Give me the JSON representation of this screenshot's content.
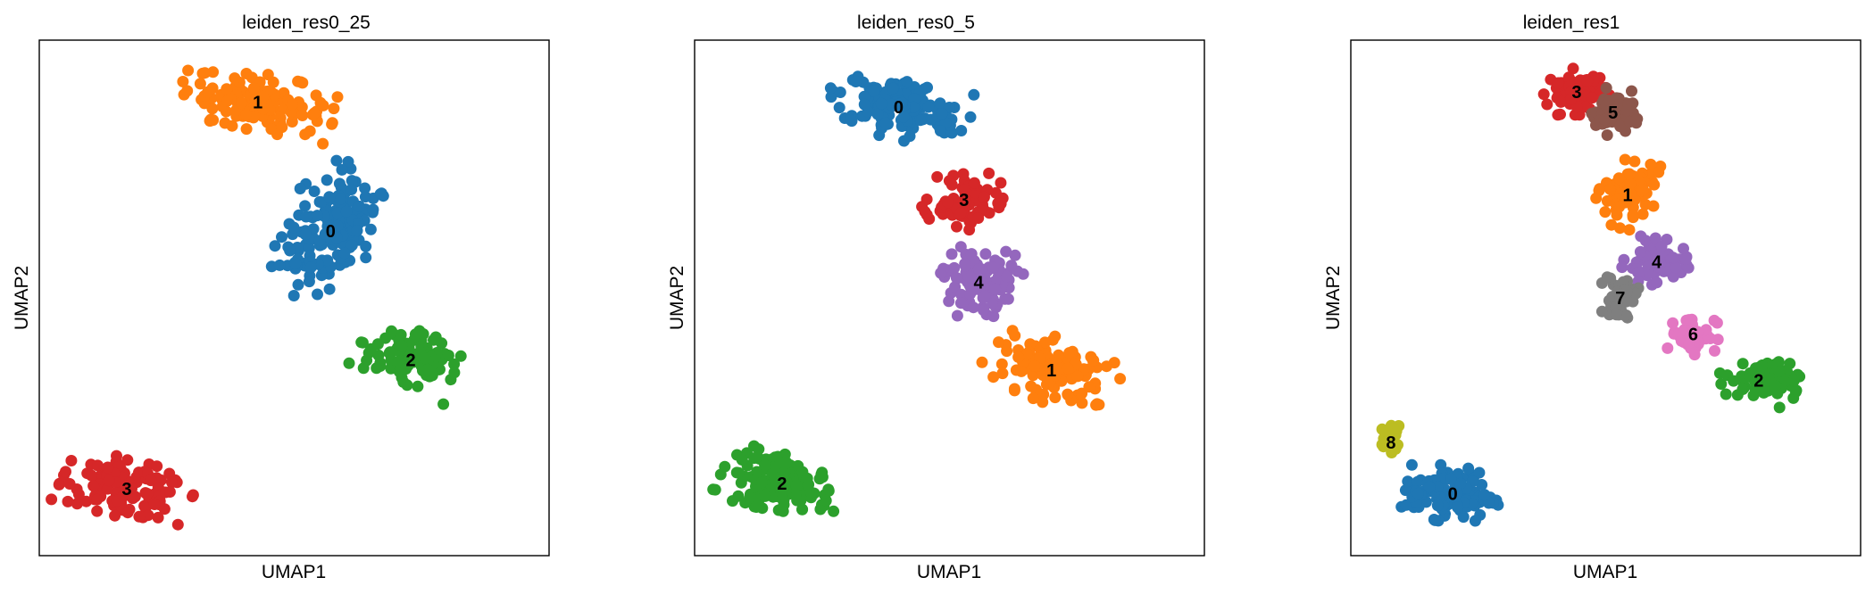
{
  "chart_data": [
    {
      "type": "scatter",
      "title": "leiden_res0_25",
      "xlabel": "UMAP1",
      "ylabel": "UMAP2",
      "ticks": "none",
      "legend": "on data",
      "clusters": [
        {
          "name": "0",
          "color": "#1f77b4",
          "x": 4.0,
          "y": 6.3,
          "sx": 0.65,
          "sy": 1.35,
          "rot": -18,
          "n": 160
        },
        {
          "name": "1",
          "color": "#ff7f0e",
          "x": 3.0,
          "y": 8.8,
          "sx": 1.1,
          "sy": 0.55,
          "rot": -18,
          "n": 140
        },
        {
          "name": "2",
          "color": "#2ca02c",
          "x": 5.1,
          "y": 3.8,
          "sx": 0.8,
          "sy": 0.55,
          "rot": -28,
          "n": 110
        },
        {
          "name": "3",
          "color": "#d62728",
          "x": 1.2,
          "y": 1.3,
          "sx": 0.9,
          "sy": 0.55,
          "rot": -20,
          "n": 130
        }
      ]
    },
    {
      "type": "scatter",
      "title": "leiden_res0_5",
      "xlabel": "UMAP1",
      "ylabel": "UMAP2",
      "ticks": "none",
      "legend": "on data",
      "clusters": [
        {
          "name": "0",
          "color": "#1f77b4",
          "x": 2.8,
          "y": 8.7,
          "sx": 1.0,
          "sy": 0.6,
          "rot": -18,
          "n": 150
        },
        {
          "name": "3",
          "color": "#d62728",
          "x": 3.7,
          "y": 6.9,
          "sx": 0.5,
          "sy": 0.6,
          "rot": -20,
          "n": 80
        },
        {
          "name": "4",
          "color": "#9467bd",
          "x": 3.9,
          "y": 5.3,
          "sx": 0.55,
          "sy": 0.7,
          "rot": -15,
          "n": 100
        },
        {
          "name": "1",
          "color": "#ff7f0e",
          "x": 4.9,
          "y": 3.6,
          "sx": 0.9,
          "sy": 0.6,
          "rot": -30,
          "n": 120
        },
        {
          "name": "2",
          "color": "#2ca02c",
          "x": 1.2,
          "y": 1.4,
          "sx": 0.85,
          "sy": 0.55,
          "rot": -20,
          "n": 130
        }
      ]
    },
    {
      "type": "scatter",
      "title": "leiden_res1",
      "xlabel": "UMAP1",
      "ylabel": "UMAP2",
      "ticks": "none",
      "legend": "on data",
      "clusters": [
        {
          "name": "3",
          "color": "#d62728",
          "x": 3.1,
          "y": 9.0,
          "sx": 0.45,
          "sy": 0.45,
          "rot": 0,
          "n": 70
        },
        {
          "name": "5",
          "color": "#8c564b",
          "x": 3.6,
          "y": 8.6,
          "sx": 0.35,
          "sy": 0.45,
          "rot": -10,
          "n": 55
        },
        {
          "name": "1",
          "color": "#ff7f0e",
          "x": 3.8,
          "y": 7.0,
          "sx": 0.4,
          "sy": 0.65,
          "rot": -15,
          "n": 80
        },
        {
          "name": "4",
          "color": "#9467bd",
          "x": 4.2,
          "y": 5.7,
          "sx": 0.45,
          "sy": 0.45,
          "rot": -10,
          "n": 65
        },
        {
          "name": "7",
          "color": "#7f7f7f",
          "x": 3.7,
          "y": 5.0,
          "sx": 0.25,
          "sy": 0.5,
          "rot": 0,
          "n": 40
        },
        {
          "name": "6",
          "color": "#e377c2",
          "x": 4.7,
          "y": 4.3,
          "sx": 0.35,
          "sy": 0.4,
          "rot": 0,
          "n": 50
        },
        {
          "name": "2",
          "color": "#2ca02c",
          "x": 5.6,
          "y": 3.4,
          "sx": 0.55,
          "sy": 0.45,
          "rot": -15,
          "n": 75
        },
        {
          "name": "8",
          "color": "#bcbd22",
          "x": 0.55,
          "y": 2.2,
          "sx": 0.12,
          "sy": 0.35,
          "rot": 0,
          "n": 22
        },
        {
          "name": "0",
          "color": "#1f77b4",
          "x": 1.4,
          "y": 1.2,
          "sx": 0.65,
          "sy": 0.55,
          "rot": -10,
          "n": 120
        }
      ]
    }
  ]
}
